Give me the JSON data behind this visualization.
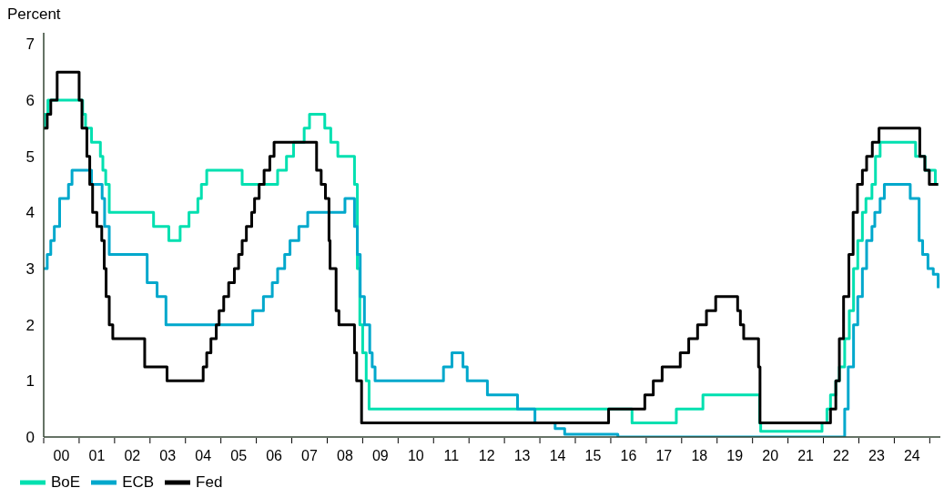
{
  "chart_data": {
    "type": "step",
    "ylabel": "Percent",
    "xlim": [
      "2000-01-01",
      "2025-04-19"
    ],
    "ylim": [
      0,
      7.2
    ],
    "yticks": [
      0,
      1,
      2,
      3,
      4,
      5,
      6,
      7
    ],
    "xticks": [
      {
        "value": "2000-01-01",
        "label": null
      },
      {
        "value": "2000-07-01",
        "label": "00"
      },
      {
        "value": "2001-01-01",
        "label": null
      },
      {
        "value": "2001-07-01",
        "label": "01"
      },
      {
        "value": "2002-01-01",
        "label": null
      },
      {
        "value": "2002-07-01",
        "label": "02"
      },
      {
        "value": "2003-01-01",
        "label": null
      },
      {
        "value": "2003-07-01",
        "label": "03"
      },
      {
        "value": "2004-01-01",
        "label": null
      },
      {
        "value": "2004-07-01",
        "label": "04"
      },
      {
        "value": "2005-01-01",
        "label": null
      },
      {
        "value": "2005-07-01",
        "label": "05"
      },
      {
        "value": "2006-01-01",
        "label": null
      },
      {
        "value": "2006-07-01",
        "label": "06"
      },
      {
        "value": "2007-01-01",
        "label": null
      },
      {
        "value": "2007-07-01",
        "label": "07"
      },
      {
        "value": "2008-01-01",
        "label": null
      },
      {
        "value": "2008-07-01",
        "label": "08"
      },
      {
        "value": "2009-01-01",
        "label": null
      },
      {
        "value": "2009-07-01",
        "label": "09"
      },
      {
        "value": "2010-01-01",
        "label": null
      },
      {
        "value": "2010-07-01",
        "label": "10"
      },
      {
        "value": "2011-01-01",
        "label": null
      },
      {
        "value": "2011-07-01",
        "label": "11"
      },
      {
        "value": "2012-01-01",
        "label": null
      },
      {
        "value": "2012-07-01",
        "label": "12"
      },
      {
        "value": "2013-01-01",
        "label": null
      },
      {
        "value": "2013-07-01",
        "label": "13"
      },
      {
        "value": "2014-01-01",
        "label": null
      },
      {
        "value": "2014-07-01",
        "label": "14"
      },
      {
        "value": "2015-01-01",
        "label": null
      },
      {
        "value": "2015-07-01",
        "label": "15"
      },
      {
        "value": "2016-01-01",
        "label": null
      },
      {
        "value": "2016-07-01",
        "label": "16"
      },
      {
        "value": "2017-01-01",
        "label": null
      },
      {
        "value": "2017-07-01",
        "label": "17"
      },
      {
        "value": "2018-01-01",
        "label": null
      },
      {
        "value": "2018-07-01",
        "label": "18"
      },
      {
        "value": "2019-01-01",
        "label": null
      },
      {
        "value": "2019-07-01",
        "label": "19"
      },
      {
        "value": "2020-01-01",
        "label": null
      },
      {
        "value": "2020-07-01",
        "label": "20"
      },
      {
        "value": "2021-01-01",
        "label": null
      },
      {
        "value": "2021-07-01",
        "label": "21"
      },
      {
        "value": "2022-01-01",
        "label": null
      },
      {
        "value": "2022-07-01",
        "label": "22"
      },
      {
        "value": "2023-01-01",
        "label": null
      },
      {
        "value": "2023-07-01",
        "label": "23"
      },
      {
        "value": "2024-01-01",
        "label": null
      },
      {
        "value": "2024-07-01",
        "label": "24"
      },
      {
        "value": "2025-01-01",
        "label": null
      }
    ],
    "grid": false,
    "legend": "bottom left",
    "marker": "none",
    "line_style": "solid",
    "series": [
      {
        "name": "BoE",
        "color": "#00e0b0",
        "x": [
          "2000-01-01",
          "2000-01-12",
          "2000-02-14",
          "2001-02-07",
          "2001-03-06",
          "2001-05-07",
          "2001-08-07",
          "2001-09-02",
          "2001-10-01",
          "2001-11-07",
          "2003-02-07",
          "2003-07-12",
          "2003-11-07",
          "2004-02-07",
          "2004-05-07",
          "2004-06-13",
          "2004-08-07",
          "2005-08-07",
          "2006-08-07",
          "2006-11-07",
          "2007-01-19",
          "2007-05-07",
          "2007-07-01",
          "2007-12-06",
          "2008-02-07",
          "2008-04-19",
          "2008-10-08",
          "2008-11-07",
          "2008-12-02",
          "2009-01-01",
          "2009-02-07",
          "2009-03-06",
          "2016-08-07",
          "2017-11-07",
          "2018-08-07",
          "2020-03-13",
          "2020-03-24",
          "2021-12-17",
          "2022-02-07",
          "2022-03-13",
          "2022-05-07",
          "2022-06-13",
          "2022-08-07",
          "2022-09-24",
          "2022-11-07",
          "2022-12-20",
          "2023-02-07",
          "2023-03-13",
          "2023-05-14",
          "2023-06-20",
          "2023-08-07",
          "2024-08-07",
          "2024-11-14",
          "2025-02-28",
          "2025-03-27"
        ],
        "values": [
          5.5,
          5.75,
          6,
          5.75,
          5.5,
          5.25,
          5,
          4.75,
          4.5,
          4,
          3.75,
          3.5,
          3.75,
          4,
          4.25,
          4.5,
          4.75,
          4.5,
          4.75,
          5,
          5.25,
          5.5,
          5.75,
          5.5,
          5.25,
          5,
          4.5,
          3,
          2,
          1.5,
          1,
          0.5,
          0.25,
          0.5,
          0.75,
          0.25,
          0.1,
          0.25,
          0.5,
          0.75,
          1,
          1.25,
          1.75,
          2.25,
          3,
          3.5,
          4,
          4.25,
          4.5,
          5,
          5.25,
          5,
          4.75,
          4.5,
          4.5
        ]
      },
      {
        "name": "ECB",
        "color": "#00a8cc",
        "x": [
          "2000-01-01",
          "2000-02-07",
          "2000-03-13",
          "2000-04-19",
          "2000-06-13",
          "2000-09-13",
          "2000-10-19",
          "2001-05-07",
          "2001-08-25",
          "2001-09-20",
          "2001-11-07",
          "2002-12-02",
          "2003-03-13",
          "2003-06-13",
          "2005-11-25",
          "2006-03-13",
          "2006-06-13",
          "2006-08-07",
          "2006-10-19",
          "2006-12-13",
          "2007-03-13",
          "2007-06-13",
          "2008-07-01",
          "2008-10-08",
          "2008-11-07",
          "2008-12-06",
          "2009-01-19",
          "2009-03-13",
          "2009-04-08",
          "2009-05-07",
          "2011-04-12",
          "2011-07-08",
          "2011-10-30",
          "2011-12-13",
          "2012-07-08",
          "2013-05-14",
          "2013-11-11",
          "2014-06-06",
          "2014-09-13",
          "2016-03-13",
          "2022-08-07",
          "2022-09-13",
          "2022-11-07",
          "2022-12-20",
          "2023-02-07",
          "2023-03-20",
          "2023-05-14",
          "2023-06-13",
          "2023-08-07",
          "2023-09-20",
          "2024-06-13",
          "2024-09-13",
          "2024-10-19",
          "2024-12-13",
          "2025-02-07",
          "2025-03-27"
        ],
        "values": [
          3,
          3.25,
          3.5,
          3.75,
          4.25,
          4.5,
          4.75,
          4.5,
          4.25,
          3.75,
          3.25,
          2.75,
          2.5,
          2,
          2.25,
          2.5,
          2.75,
          3,
          3.25,
          3.5,
          3.75,
          4,
          4.25,
          3.75,
          3.25,
          2.5,
          2,
          1.5,
          1.25,
          1,
          1.25,
          1.5,
          1.25,
          1,
          0.75,
          0.5,
          0.25,
          0.15,
          0.05,
          0,
          0.5,
          1.25,
          2,
          2.5,
          3,
          3.5,
          3.75,
          4,
          4.25,
          4.5,
          4.25,
          3.5,
          3.25,
          3,
          2.9,
          2.65
        ]
      },
      {
        "name": "Fed",
        "color": "#000000",
        "x": [
          "2000-01-01",
          "2000-02-07",
          "2000-03-13",
          "2000-05-18",
          "2001-01-01",
          "2001-01-30",
          "2001-03-20",
          "2001-04-19",
          "2001-05-18",
          "2001-07-01",
          "2001-08-21",
          "2001-09-16",
          "2001-10-05",
          "2001-11-07",
          "2001-12-13",
          "2002-11-07",
          "2003-06-24",
          "2004-07-01",
          "2004-08-07",
          "2004-09-20",
          "2004-11-14",
          "2004-12-13",
          "2005-01-30",
          "2005-03-20",
          "2005-05-18",
          "2005-07-01",
          "2005-08-07",
          "2005-09-20",
          "2005-11-14",
          "2005-12-13",
          "2006-01-30",
          "2006-03-20",
          "2006-05-18",
          "2006-07-01",
          "2007-09-13",
          "2007-10-30",
          "2007-12-13",
          "2008-01-19",
          "2008-01-30",
          "2008-04-01",
          "2008-04-30",
          "2008-10-08",
          "2008-10-30",
          "2008-12-20",
          "2015-12-09",
          "2016-12-17",
          "2017-03-13",
          "2017-06-13",
          "2017-12-17",
          "2018-03-13",
          "2018-06-13",
          "2018-09-13",
          "2018-12-17",
          "2019-07-30",
          "2019-08-28",
          "2019-10-01",
          "2020-03-02",
          "2020-03-17",
          "2022-03-13",
          "2022-05-07",
          "2022-06-13",
          "2022-07-26",
          "2022-09-20",
          "2022-11-03",
          "2022-12-17",
          "2023-02-07",
          "2023-03-20",
          "2023-05-18",
          "2023-07-26",
          "2024-09-20",
          "2024-11-11",
          "2024-12-27",
          "2025-03-27"
        ],
        "values": [
          5.5,
          5.75,
          6,
          6.5,
          6,
          5.5,
          5,
          4.5,
          4,
          3.75,
          3.5,
          3,
          2.5,
          2,
          1.75,
          1.25,
          1,
          1.25,
          1.5,
          1.75,
          2,
          2.25,
          2.5,
          2.75,
          3,
          3.25,
          3.5,
          3.75,
          4,
          4.25,
          4.5,
          4.75,
          5,
          5.25,
          4.75,
          4.5,
          4.25,
          3.5,
          3,
          2.25,
          2,
          1.5,
          1,
          0.25,
          0.5,
          0.75,
          1,
          1.25,
          1.5,
          1.75,
          2,
          2.25,
          2.5,
          2.25,
          2,
          1.75,
          1.25,
          0.25,
          0.5,
          1,
          1.75,
          2.5,
          3.25,
          4,
          4.5,
          4.75,
          5,
          5.25,
          5.5,
          5,
          4.75,
          4.5,
          4.5
        ]
      }
    ]
  }
}
